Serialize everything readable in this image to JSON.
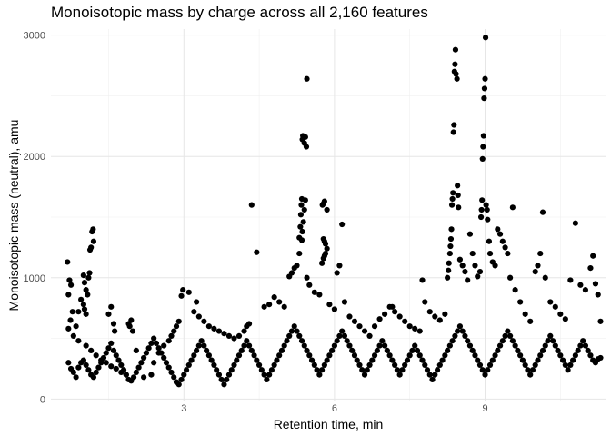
{
  "chart_data": {
    "type": "scatter",
    "title": "Monoisotopic mass by charge across all 2,160 features",
    "xlabel": "Retention time, min",
    "ylabel": "Monoisotopic mass (neutral), amu",
    "xlim": [
      0.35,
      11.4
    ],
    "ylim": [
      -20,
      3050
    ],
    "x_ticks": [
      3,
      6,
      9
    ],
    "x_tick_labels": [
      "3",
      "6",
      "9"
    ],
    "y_ticks": [
      0,
      1000,
      2000,
      3000
    ],
    "y_tick_labels": [
      "0",
      "1000",
      "2000",
      "3000"
    ],
    "grid": true,
    "point_color": "#000000",
    "points": [
      [
        0.68,
        1130
      ],
      [
        0.72,
        980
      ],
      [
        0.75,
        940
      ],
      [
        0.7,
        860
      ],
      [
        0.78,
        720
      ],
      [
        0.74,
        650
      ],
      [
        0.7,
        580
      ],
      [
        0.8,
        520
      ],
      [
        0.9,
        480
      ],
      [
        1.05,
        440
      ],
      [
        1.15,
        400
      ],
      [
        1.25,
        360
      ],
      [
        1.35,
        320
      ],
      [
        1.45,
        300
      ],
      [
        1.55,
        270
      ],
      [
        1.65,
        250
      ],
      [
        1.75,
        220
      ],
      [
        1.85,
        200
      ],
      [
        0.95,
        820
      ],
      [
        1.0,
        780
      ],
      [
        1.02,
        740
      ],
      [
        1.05,
        700
      ],
      [
        1.08,
        860
      ],
      [
        1.1,
        1000
      ],
      [
        1.12,
        1040
      ],
      [
        1.0,
        1020
      ],
      [
        1.02,
        960
      ],
      [
        1.05,
        900
      ],
      [
        1.15,
        1250
      ],
      [
        1.17,
        1380
      ],
      [
        1.19,
        1400
      ],
      [
        1.2,
        1300
      ],
      [
        1.13,
        1230
      ],
      [
        0.9,
        720
      ],
      [
        0.85,
        600
      ],
      [
        1.5,
        700
      ],
      [
        1.55,
        760
      ],
      [
        1.6,
        620
      ],
      [
        1.62,
        560
      ],
      [
        1.9,
        620
      ],
      [
        1.95,
        650
      ],
      [
        1.92,
        600
      ],
      [
        1.98,
        560
      ],
      [
        2.05,
        400
      ],
      [
        2.2,
        180
      ],
      [
        2.35,
        200
      ],
      [
        2.4,
        300
      ],
      [
        2.5,
        380
      ],
      [
        2.6,
        440
      ],
      [
        2.7,
        480
      ],
      [
        2.75,
        520
      ],
      [
        2.8,
        560
      ],
      [
        2.85,
        600
      ],
      [
        2.9,
        640
      ],
      [
        2.95,
        850
      ],
      [
        2.98,
        900
      ],
      [
        3.1,
        880
      ],
      [
        3.25,
        800
      ],
      [
        3.2,
        720
      ],
      [
        3.3,
        680
      ],
      [
        3.4,
        640
      ],
      [
        3.5,
        600
      ],
      [
        3.6,
        580
      ],
      [
        3.7,
        560
      ],
      [
        3.8,
        540
      ],
      [
        3.9,
        520
      ],
      [
        4.0,
        500
      ],
      [
        4.1,
        520
      ],
      [
        4.2,
        560
      ],
      [
        4.25,
        600
      ],
      [
        4.3,
        620
      ],
      [
        4.35,
        1600
      ],
      [
        4.45,
        1210
      ],
      [
        4.6,
        760
      ],
      [
        4.7,
        780
      ],
      [
        4.8,
        840
      ],
      [
        4.9,
        800
      ],
      [
        5.0,
        760
      ],
      [
        5.1,
        1010
      ],
      [
        5.15,
        1040
      ],
      [
        5.2,
        1080
      ],
      [
        5.25,
        1100
      ],
      [
        5.3,
        1200
      ],
      [
        5.3,
        1330
      ],
      [
        5.32,
        1420
      ],
      [
        5.33,
        1520
      ],
      [
        5.34,
        1600
      ],
      [
        5.35,
        1650
      ],
      [
        5.36,
        2140
      ],
      [
        5.37,
        2170
      ],
      [
        5.4,
        2110
      ],
      [
        5.42,
        2160
      ],
      [
        5.44,
        2080
      ],
      [
        5.45,
        2640
      ],
      [
        5.42,
        1640
      ],
      [
        5.4,
        1560
      ],
      [
        5.38,
        1460
      ],
      [
        5.36,
        1380
      ],
      [
        5.35,
        1310
      ],
      [
        5.45,
        1000
      ],
      [
        5.5,
        940
      ],
      [
        5.6,
        880
      ],
      [
        5.7,
        860
      ],
      [
        5.75,
        1120
      ],
      [
        5.78,
        1160
      ],
      [
        5.8,
        1180
      ],
      [
        5.82,
        1200
      ],
      [
        5.85,
        1240
      ],
      [
        5.82,
        1280
      ],
      [
        5.8,
        1300
      ],
      [
        5.78,
        1320
      ],
      [
        5.76,
        1600
      ],
      [
        5.78,
        1610
      ],
      [
        5.8,
        1630
      ],
      [
        5.85,
        1560
      ],
      [
        5.9,
        780
      ],
      [
        6.0,
        740
      ],
      [
        6.05,
        1040
      ],
      [
        6.1,
        1100
      ],
      [
        6.15,
        1440
      ],
      [
        6.2,
        800
      ],
      [
        6.3,
        680
      ],
      [
        6.4,
        640
      ],
      [
        6.5,
        600
      ],
      [
        6.6,
        560
      ],
      [
        6.7,
        520
      ],
      [
        6.8,
        600
      ],
      [
        6.9,
        660
      ],
      [
        7.0,
        700
      ],
      [
        7.1,
        760
      ],
      [
        7.15,
        760
      ],
      [
        7.2,
        720
      ],
      [
        7.3,
        680
      ],
      [
        7.4,
        640
      ],
      [
        7.5,
        600
      ],
      [
        7.6,
        580
      ],
      [
        7.7,
        560
      ],
      [
        7.75,
        980
      ],
      [
        7.8,
        800
      ],
      [
        7.9,
        720
      ],
      [
        8.0,
        680
      ],
      [
        8.1,
        650
      ],
      [
        8.2,
        700
      ],
      [
        8.25,
        1000
      ],
      [
        8.27,
        1060
      ],
      [
        8.28,
        1120
      ],
      [
        8.3,
        1200
      ],
      [
        8.31,
        1260
      ],
      [
        8.32,
        1320
      ],
      [
        8.33,
        1400
      ],
      [
        8.34,
        1600
      ],
      [
        8.35,
        1650
      ],
      [
        8.36,
        1700
      ],
      [
        8.37,
        2200
      ],
      [
        8.38,
        2260
      ],
      [
        8.39,
        2700
      ],
      [
        8.4,
        2760
      ],
      [
        8.41,
        2880
      ],
      [
        8.42,
        2680
      ],
      [
        8.44,
        2640
      ],
      [
        8.45,
        1760
      ],
      [
        8.46,
        1680
      ],
      [
        8.47,
        1580
      ],
      [
        8.5,
        1150
      ],
      [
        8.55,
        1100
      ],
      [
        8.6,
        1050
      ],
      [
        8.65,
        980
      ],
      [
        8.7,
        1360
      ],
      [
        8.75,
        1200
      ],
      [
        8.8,
        1100
      ],
      [
        8.85,
        1010
      ],
      [
        8.9,
        1050
      ],
      [
        8.92,
        1500
      ],
      [
        8.93,
        1560
      ],
      [
        8.94,
        1640
      ],
      [
        8.95,
        1980
      ],
      [
        8.96,
        2080
      ],
      [
        8.97,
        2170
      ],
      [
        8.98,
        2480
      ],
      [
        8.99,
        2560
      ],
      [
        9.0,
        2640
      ],
      [
        9.01,
        2980
      ],
      [
        9.02,
        1600
      ],
      [
        9.04,
        1560
      ],
      [
        9.05,
        1480
      ],
      [
        9.08,
        1300
      ],
      [
        9.1,
        1200
      ],
      [
        9.15,
        1130
      ],
      [
        9.2,
        1100
      ],
      [
        9.25,
        1400
      ],
      [
        9.3,
        1360
      ],
      [
        9.35,
        1300
      ],
      [
        9.4,
        1250
      ],
      [
        9.45,
        1200
      ],
      [
        9.5,
        1000
      ],
      [
        9.55,
        1580
      ],
      [
        9.6,
        900
      ],
      [
        9.7,
        800
      ],
      [
        9.8,
        700
      ],
      [
        9.9,
        640
      ],
      [
        10.0,
        1050
      ],
      [
        10.05,
        1100
      ],
      [
        10.1,
        1200
      ],
      [
        10.15,
        1540
      ],
      [
        10.2,
        1000
      ],
      [
        10.3,
        800
      ],
      [
        10.4,
        760
      ],
      [
        10.5,
        700
      ],
      [
        10.6,
        660
      ],
      [
        10.7,
        980
      ],
      [
        10.8,
        1450
      ],
      [
        10.9,
        940
      ],
      [
        11.0,
        900
      ],
      [
        11.1,
        1080
      ],
      [
        11.15,
        1180
      ],
      [
        11.2,
        950
      ],
      [
        11.25,
        860
      ],
      [
        11.3,
        640
      ],
      [
        0.7,
        300
      ],
      [
        0.75,
        250
      ],
      [
        0.8,
        220
      ],
      [
        0.85,
        180
      ],
      [
        0.9,
        260
      ],
      [
        0.95,
        300
      ],
      [
        1.0,
        320
      ],
      [
        1.05,
        280
      ],
      [
        1.1,
        240
      ],
      [
        1.15,
        200
      ],
      [
        1.2,
        180
      ],
      [
        1.25,
        220
      ],
      [
        1.3,
        260
      ],
      [
        1.35,
        300
      ],
      [
        1.4,
        340
      ],
      [
        1.45,
        380
      ],
      [
        1.5,
        420
      ],
      [
        1.55,
        460
      ],
      [
        1.6,
        400
      ],
      [
        1.65,
        360
      ],
      [
        1.7,
        320
      ],
      [
        1.75,
        280
      ],
      [
        1.8,
        240
      ],
      [
        1.85,
        200
      ],
      [
        1.9,
        160
      ],
      [
        1.95,
        150
      ],
      [
        2.0,
        180
      ],
      [
        2.05,
        220
      ],
      [
        2.1,
        260
      ],
      [
        2.15,
        300
      ],
      [
        2.2,
        340
      ],
      [
        2.25,
        380
      ],
      [
        2.3,
        420
      ],
      [
        2.35,
        460
      ],
      [
        2.4,
        500
      ],
      [
        2.45,
        460
      ],
      [
        2.5,
        420
      ],
      [
        2.55,
        380
      ],
      [
        2.6,
        340
      ],
      [
        2.65,
        300
      ],
      [
        2.7,
        260
      ],
      [
        2.75,
        220
      ],
      [
        2.8,
        180
      ],
      [
        2.85,
        140
      ],
      [
        2.9,
        120
      ],
      [
        2.95,
        160
      ],
      [
        3.0,
        200
      ],
      [
        3.05,
        240
      ],
      [
        3.1,
        280
      ],
      [
        3.15,
        320
      ],
      [
        3.2,
        360
      ],
      [
        3.25,
        400
      ],
      [
        3.3,
        440
      ],
      [
        3.35,
        480
      ],
      [
        3.4,
        440
      ],
      [
        3.45,
        400
      ],
      [
        3.5,
        360
      ],
      [
        3.55,
        320
      ],
      [
        3.6,
        280
      ],
      [
        3.65,
        240
      ],
      [
        3.7,
        200
      ],
      [
        3.75,
        160
      ],
      [
        3.8,
        120
      ],
      [
        3.85,
        160
      ],
      [
        3.9,
        200
      ],
      [
        3.95,
        240
      ],
      [
        4.0,
        280
      ],
      [
        4.05,
        320
      ],
      [
        4.1,
        360
      ],
      [
        4.15,
        400
      ],
      [
        4.2,
        440
      ],
      [
        4.25,
        480
      ],
      [
        4.3,
        440
      ],
      [
        4.35,
        400
      ],
      [
        4.4,
        360
      ],
      [
        4.45,
        320
      ],
      [
        4.5,
        280
      ],
      [
        4.55,
        240
      ],
      [
        4.6,
        200
      ],
      [
        4.65,
        160
      ],
      [
        4.7,
        200
      ],
      [
        4.75,
        240
      ],
      [
        4.8,
        280
      ],
      [
        4.85,
        320
      ],
      [
        4.9,
        360
      ],
      [
        4.95,
        400
      ],
      [
        5.0,
        440
      ],
      [
        5.05,
        480
      ],
      [
        5.1,
        520
      ],
      [
        5.15,
        560
      ],
      [
        5.2,
        600
      ],
      [
        5.25,
        560
      ],
      [
        5.3,
        520
      ],
      [
        5.35,
        480
      ],
      [
        5.4,
        440
      ],
      [
        5.45,
        400
      ],
      [
        5.5,
        360
      ],
      [
        5.55,
        320
      ],
      [
        5.6,
        280
      ],
      [
        5.65,
        240
      ],
      [
        5.7,
        200
      ],
      [
        5.75,
        240
      ],
      [
        5.8,
        280
      ],
      [
        5.85,
        320
      ],
      [
        5.9,
        360
      ],
      [
        5.95,
        400
      ],
      [
        6.0,
        440
      ],
      [
        6.05,
        480
      ],
      [
        6.1,
        520
      ],
      [
        6.15,
        560
      ],
      [
        6.2,
        520
      ],
      [
        6.25,
        480
      ],
      [
        6.3,
        440
      ],
      [
        6.35,
        400
      ],
      [
        6.4,
        360
      ],
      [
        6.45,
        320
      ],
      [
        6.5,
        280
      ],
      [
        6.55,
        240
      ],
      [
        6.6,
        200
      ],
      [
        6.65,
        240
      ],
      [
        6.7,
        280
      ],
      [
        6.75,
        320
      ],
      [
        6.8,
        360
      ],
      [
        6.85,
        400
      ],
      [
        6.9,
        440
      ],
      [
        6.95,
        480
      ],
      [
        7.0,
        440
      ],
      [
        7.05,
        400
      ],
      [
        7.1,
        360
      ],
      [
        7.15,
        320
      ],
      [
        7.2,
        280
      ],
      [
        7.25,
        240
      ],
      [
        7.3,
        200
      ],
      [
        7.35,
        240
      ],
      [
        7.4,
        280
      ],
      [
        7.45,
        320
      ],
      [
        7.5,
        360
      ],
      [
        7.55,
        400
      ],
      [
        7.6,
        440
      ],
      [
        7.65,
        400
      ],
      [
        7.7,
        360
      ],
      [
        7.75,
        320
      ],
      [
        7.8,
        280
      ],
      [
        7.85,
        240
      ],
      [
        7.9,
        200
      ],
      [
        7.95,
        160
      ],
      [
        8.0,
        200
      ],
      [
        8.05,
        240
      ],
      [
        8.1,
        280
      ],
      [
        8.15,
        320
      ],
      [
        8.2,
        360
      ],
      [
        8.25,
        400
      ],
      [
        8.3,
        440
      ],
      [
        8.35,
        480
      ],
      [
        8.4,
        520
      ],
      [
        8.45,
        560
      ],
      [
        8.5,
        600
      ],
      [
        8.55,
        560
      ],
      [
        8.6,
        520
      ],
      [
        8.65,
        480
      ],
      [
        8.7,
        440
      ],
      [
        8.75,
        400
      ],
      [
        8.8,
        360
      ],
      [
        8.85,
        320
      ],
      [
        8.9,
        280
      ],
      [
        8.95,
        240
      ],
      [
        9.0,
        200
      ],
      [
        9.05,
        240
      ],
      [
        9.1,
        280
      ],
      [
        9.15,
        320
      ],
      [
        9.2,
        360
      ],
      [
        9.25,
        400
      ],
      [
        9.3,
        440
      ],
      [
        9.35,
        480
      ],
      [
        9.4,
        520
      ],
      [
        9.45,
        560
      ],
      [
        9.5,
        520
      ],
      [
        9.55,
        480
      ],
      [
        9.6,
        440
      ],
      [
        9.65,
        400
      ],
      [
        9.7,
        360
      ],
      [
        9.75,
        320
      ],
      [
        9.8,
        280
      ],
      [
        9.85,
        240
      ],
      [
        9.9,
        200
      ],
      [
        9.95,
        240
      ],
      [
        10.0,
        280
      ],
      [
        10.05,
        320
      ],
      [
        10.1,
        360
      ],
      [
        10.15,
        400
      ],
      [
        10.2,
        440
      ],
      [
        10.25,
        480
      ],
      [
        10.3,
        520
      ],
      [
        10.35,
        480
      ],
      [
        10.4,
        440
      ],
      [
        10.45,
        400
      ],
      [
        10.5,
        360
      ],
      [
        10.55,
        320
      ],
      [
        10.6,
        280
      ],
      [
        10.65,
        240
      ],
      [
        10.7,
        280
      ],
      [
        10.75,
        320
      ],
      [
        10.8,
        360
      ],
      [
        10.85,
        400
      ],
      [
        10.9,
        440
      ],
      [
        10.95,
        480
      ],
      [
        11.0,
        440
      ],
      [
        11.05,
        400
      ],
      [
        11.1,
        360
      ],
      [
        11.15,
        320
      ],
      [
        11.2,
        300
      ],
      [
        11.25,
        330
      ],
      [
        11.3,
        340
      ]
    ]
  }
}
